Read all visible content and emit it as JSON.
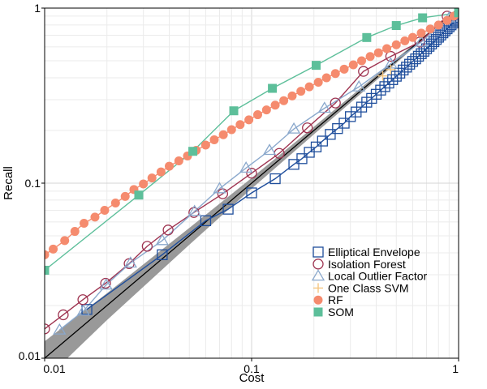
{
  "chart_data": {
    "type": "scatter",
    "title": "",
    "xlabel": "Cost",
    "ylabel": "Recall",
    "xscale": "log",
    "yscale": "log",
    "xlim": [
      0.01,
      1
    ],
    "ylim": [
      0.01,
      1
    ],
    "x_ticks": [
      {
        "value": 0.01,
        "label": "0.01"
      },
      {
        "value": 0.1,
        "label": "0.1"
      },
      {
        "value": 1,
        "label": "1"
      }
    ],
    "y_ticks": [
      {
        "value": 0.01,
        "label": "0.01"
      },
      {
        "value": 0.1,
        "label": "0.1"
      },
      {
        "value": 1,
        "label": "1"
      }
    ],
    "grid": true,
    "legend_position": "bottom-right",
    "baseline": {
      "color": "#000000",
      "band_color": "#999999",
      "x": [
        0.01,
        0.02,
        0.05,
        0.1,
        0.2,
        0.5,
        1
      ],
      "y": [
        0.01,
        0.02,
        0.05,
        0.1,
        0.2,
        0.5,
        1
      ],
      "lower": [
        0.0075,
        0.0165,
        0.0445,
        0.093,
        0.19,
        0.485,
        1
      ],
      "upper": [
        0.0125,
        0.0235,
        0.0555,
        0.107,
        0.21,
        0.515,
        1
      ]
    },
    "series": [
      {
        "name": "Elliptical Envelope",
        "marker": "square-open",
        "color": "#1f4e9c",
        "line": true,
        "x": [
          0.016,
          0.037,
          0.06,
          0.077,
          0.1,
          0.13,
          0.16,
          0.175,
          0.19,
          0.205,
          0.22,
          0.24,
          0.26,
          0.28,
          0.3,
          0.32,
          0.34,
          0.36,
          0.38,
          0.4,
          0.42,
          0.44,
          0.46,
          0.48,
          0.5,
          0.52,
          0.54,
          0.56,
          0.58,
          0.6,
          0.62,
          0.64,
          0.66,
          0.68,
          0.7,
          0.72,
          0.74,
          0.76,
          0.78,
          0.8,
          0.82,
          0.84,
          0.86,
          0.88,
          0.9,
          0.92,
          0.94,
          0.96,
          0.98,
          1.0
        ],
        "y": [
          0.019,
          0.039,
          0.061,
          0.071,
          0.088,
          0.106,
          0.128,
          0.138,
          0.15,
          0.161,
          0.174,
          0.19,
          0.205,
          0.22,
          0.24,
          0.255,
          0.272,
          0.29,
          0.305,
          0.322,
          0.34,
          0.356,
          0.373,
          0.39,
          0.408,
          0.425,
          0.443,
          0.46,
          0.478,
          0.496,
          0.513,
          0.531,
          0.549,
          0.567,
          0.586,
          0.605,
          0.624,
          0.643,
          0.662,
          0.682,
          0.702,
          0.722,
          0.742,
          0.762,
          0.782,
          0.802,
          0.822,
          0.843,
          0.863,
          0.884
        ]
      },
      {
        "name": "Isolation Forest",
        "marker": "circle-open",
        "color": "#9e3350",
        "line": true,
        "x": [
          0.01,
          0.0123,
          0.0153,
          0.0197,
          0.0256,
          0.0313,
          0.0395,
          0.0526,
          0.0725,
          0.1,
          0.136,
          0.186,
          0.254,
          0.347,
          0.47,
          0.65,
          0.88
        ],
        "y": [
          0.0147,
          0.0177,
          0.0216,
          0.0268,
          0.0347,
          0.0436,
          0.054,
          0.068,
          0.087,
          0.114,
          0.148,
          0.207,
          0.287,
          0.435,
          0.53,
          0.64,
          0.9
        ]
      },
      {
        "name": "Local Outlier Factor",
        "marker": "triangle-open",
        "color": "#8aa8cc",
        "line": true,
        "x": [
          0.0118,
          0.0154,
          0.0198,
          0.026,
          0.037,
          0.053,
          0.07,
          0.094,
          0.122,
          0.16,
          0.225,
          0.33,
          0.47,
          0.66,
          0.9
        ],
        "y": [
          0.0145,
          0.0186,
          0.0262,
          0.035,
          0.047,
          0.069,
          0.093,
          0.122,
          0.154,
          0.204,
          0.268,
          0.355,
          0.48,
          0.64,
          0.88
        ]
      },
      {
        "name": "One Class SVM",
        "marker": "plus",
        "color": "#f5c680",
        "line": false,
        "x": [
          0.43,
          0.47
        ],
        "y": [
          0.41,
          0.445
        ]
      },
      {
        "name": "RF",
        "marker": "circle-filled",
        "color": "#f58b6e",
        "line": true,
        "x": [
          0.01,
          0.011,
          0.0125,
          0.014,
          0.0155,
          0.0175,
          0.0195,
          0.022,
          0.0245,
          0.027,
          0.03,
          0.033,
          0.0365,
          0.04,
          0.0445,
          0.049,
          0.054,
          0.06,
          0.066,
          0.073,
          0.08,
          0.088,
          0.097,
          0.107,
          0.118,
          0.13,
          0.143,
          0.157,
          0.173,
          0.19,
          0.21,
          0.23,
          0.254,
          0.28,
          0.31,
          0.34,
          0.374,
          0.41,
          0.45,
          0.5,
          0.55,
          0.6,
          0.66,
          0.73,
          0.8,
          0.88,
          0.95
        ],
        "y": [
          0.039,
          0.042,
          0.047,
          0.053,
          0.059,
          0.064,
          0.07,
          0.077,
          0.084,
          0.092,
          0.099,
          0.107,
          0.116,
          0.125,
          0.134,
          0.143,
          0.154,
          0.165,
          0.177,
          0.189,
          0.202,
          0.216,
          0.23,
          0.246,
          0.262,
          0.279,
          0.296,
          0.315,
          0.335,
          0.355,
          0.377,
          0.4,
          0.423,
          0.448,
          0.474,
          0.5,
          0.529,
          0.556,
          0.587,
          0.617,
          0.65,
          0.68,
          0.72,
          0.76,
          0.8,
          0.85,
          0.9
        ]
      },
      {
        "name": "SOM",
        "marker": "square-filled",
        "color": "#5dbf9a",
        "line": true,
        "x": [
          0.01,
          0.0285,
          0.052,
          0.082,
          0.126,
          0.205,
          0.36,
          0.5,
          0.67,
          1.0
        ],
        "y": [
          0.0318,
          0.0855,
          0.152,
          0.259,
          0.348,
          0.471,
          0.679,
          0.795,
          0.88,
          0.94
        ]
      }
    ]
  }
}
